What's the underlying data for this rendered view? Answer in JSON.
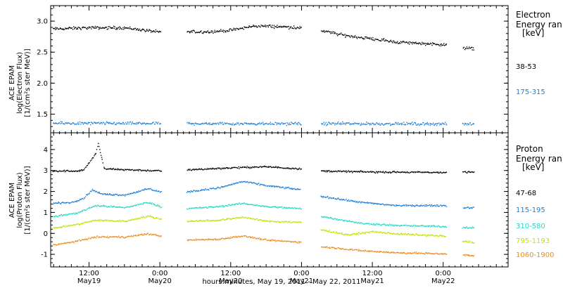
{
  "xlabel": "hours:minutes, May 19, 2011 - May 22, 2011",
  "x_ticks": [
    {
      "t": 12,
      "time": "12:00",
      "date": "May19"
    },
    {
      "t": 24,
      "time": "0:00",
      "date": "May20"
    },
    {
      "t": 36,
      "time": "12:00",
      "date": "May20"
    },
    {
      "t": 48,
      "time": "0:00",
      "date": "May21"
    },
    {
      "t": 60,
      "time": "12:00",
      "date": "May21"
    },
    {
      "t": 72,
      "time": "0:00",
      "date": "May22"
    }
  ],
  "chart_data": [
    {
      "type": "scatter",
      "ylabel": [
        "ACE EPAM",
        "log(Electron Flux)",
        "[1/(cm²s ster MeV)]"
      ],
      "ylim": [
        1.2,
        3.25
      ],
      "y_ticks": [
        "1.5",
        "2.0",
        "2.5",
        "3.0"
      ],
      "y_tick_values": [
        1.5,
        2.0,
        2.5,
        3.0
      ],
      "xlim": [
        5.5,
        83
      ],
      "legend": {
        "placement": "right",
        "title_lines": [
          "Electron",
          "Energy ran",
          "[keV]"
        ],
        "entries": [
          {
            "label": "38-53",
            "color": "#000000"
          },
          {
            "label": "175-315",
            "color": "#1e7fd6"
          }
        ]
      },
      "data_gaps": [
        [
          24.2,
          28.5
        ],
        [
          47.9,
          51.2
        ],
        [
          72.5,
          75.2
        ]
      ],
      "data_end": 77.2,
      "series": [
        {
          "name": "38-53",
          "color": "#000000",
          "profile": [
            [
              5.5,
              2.88
            ],
            [
              12,
              2.9
            ],
            [
              18,
              2.9
            ],
            [
              24,
              2.83
            ],
            [
              28.5,
              2.83
            ],
            [
              33,
              2.84
            ],
            [
              36,
              2.86
            ],
            [
              40,
              2.93
            ],
            [
              44,
              2.92
            ],
            [
              48,
              2.9
            ],
            [
              51,
              2.86
            ],
            [
              55,
              2.78
            ],
            [
              60,
              2.72
            ],
            [
              64,
              2.67
            ],
            [
              68,
              2.65
            ],
            [
              72,
              2.63
            ],
            [
              75,
              2.58
            ],
            [
              77,
              2.56
            ]
          ]
        },
        {
          "name": "175-315",
          "color": "#1e7fd6",
          "profile": [
            [
              5.5,
              1.36
            ],
            [
              77,
              1.35
            ]
          ]
        }
      ]
    },
    {
      "type": "scatter",
      "ylabel": [
        "ACE EPAM",
        "log(Proton Flux)",
        "[1/(cm²s ster MeV)]"
      ],
      "ylim": [
        -1.6,
        4.8
      ],
      "y_ticks": [
        "-1",
        "0",
        "1",
        "2",
        "3",
        "4"
      ],
      "y_tick_values": [
        -1,
        0,
        1,
        2,
        3,
        4
      ],
      "xlim": [
        5.5,
        83
      ],
      "legend": {
        "placement": "right",
        "title_lines": [
          "Proton",
          "Energy ran",
          "[keV]"
        ],
        "entries": [
          {
            "label": "47-68",
            "color": "#000000"
          },
          {
            "label": "115-195",
            "color": "#1e7fd6"
          },
          {
            "label": "310-580",
            "color": "#22d8c8"
          },
          {
            "label": "795-1193",
            "color": "#c6e000"
          },
          {
            "label": "1060-1900",
            "color": "#f08a1c"
          }
        ]
      },
      "data_gaps": [
        [
          24.2,
          28.5
        ],
        [
          47.9,
          51.2
        ],
        [
          72.5,
          75.2
        ]
      ],
      "data_end": 77.2,
      "series": [
        {
          "name": "47-68",
          "color": "#000000",
          "profile": [
            [
              5.5,
              3.0
            ],
            [
              10,
              3.0
            ],
            [
              11,
              3.05
            ],
            [
              12,
              3.4
            ],
            [
              13,
              3.8
            ],
            [
              13.5,
              4.3
            ],
            [
              14.5,
              3.1
            ],
            [
              24,
              3.0
            ],
            [
              28.5,
              3.05
            ],
            [
              36,
              3.15
            ],
            [
              42,
              3.2
            ],
            [
              48,
              3.1
            ],
            [
              51,
              3.0
            ],
            [
              60,
              2.95
            ],
            [
              72,
              2.93
            ],
            [
              75,
              2.95
            ],
            [
              77,
              2.95
            ]
          ]
        },
        {
          "name": "115-195",
          "color": "#1e7fd6",
          "profile": [
            [
              5.5,
              1.45
            ],
            [
              9,
              1.5
            ],
            [
              11,
              1.7
            ],
            [
              12.5,
              2.1
            ],
            [
              14,
              1.9
            ],
            [
              18,
              1.85
            ],
            [
              22,
              2.15
            ],
            [
              24,
              2.0
            ],
            [
              28.5,
              2.0
            ],
            [
              34,
              2.2
            ],
            [
              38,
              2.5
            ],
            [
              42,
              2.3
            ],
            [
              48,
              2.1
            ],
            [
              51,
              1.8
            ],
            [
              58,
              1.5
            ],
            [
              64,
              1.35
            ],
            [
              72,
              1.35
            ],
            [
              75,
              1.25
            ],
            [
              77,
              1.25
            ]
          ]
        },
        {
          "name": "310-580",
          "color": "#22d8c8",
          "profile": [
            [
              5.5,
              0.8
            ],
            [
              10,
              1.0
            ],
            [
              13,
              1.35
            ],
            [
              18,
              1.25
            ],
            [
              22,
              1.5
            ],
            [
              24,
              1.3
            ],
            [
              28.5,
              1.2
            ],
            [
              34,
              1.3
            ],
            [
              38,
              1.45
            ],
            [
              42,
              1.3
            ],
            [
              48,
              1.2
            ],
            [
              51,
              0.85
            ],
            [
              58,
              0.5
            ],
            [
              64,
              0.4
            ],
            [
              72,
              0.35
            ],
            [
              75,
              0.3
            ],
            [
              77,
              0.3
            ]
          ]
        },
        {
          "name": "795-1193",
          "color": "#c6e000",
          "profile": [
            [
              5.5,
              0.25
            ],
            [
              10,
              0.45
            ],
            [
              13,
              0.65
            ],
            [
              18,
              0.6
            ],
            [
              22,
              0.85
            ],
            [
              24,
              0.7
            ],
            [
              28.5,
              0.6
            ],
            [
              34,
              0.65
            ],
            [
              38,
              0.8
            ],
            [
              42,
              0.6
            ],
            [
              48,
              0.55
            ],
            [
              51,
              0.2
            ],
            [
              56,
              -0.05
            ],
            [
              60,
              0.1
            ],
            [
              64,
              0.0
            ],
            [
              72,
              -0.1
            ],
            [
              75,
              -0.35
            ],
            [
              77,
              -0.4
            ]
          ]
        },
        {
          "name": "1060-1900",
          "color": "#f08a1c",
          "profile": [
            [
              5.5,
              -0.55
            ],
            [
              10,
              -0.35
            ],
            [
              13,
              -0.15
            ],
            [
              18,
              -0.15
            ],
            [
              22,
              0.0
            ],
            [
              24,
              -0.1
            ],
            [
              28.5,
              -0.3
            ],
            [
              34,
              -0.25
            ],
            [
              38,
              -0.1
            ],
            [
              42,
              -0.3
            ],
            [
              48,
              -0.4
            ],
            [
              51,
              -0.6
            ],
            [
              58,
              -0.8
            ],
            [
              64,
              -0.9
            ],
            [
              72,
              -0.95
            ],
            [
              75,
              -1.0
            ],
            [
              77,
              -1.05
            ]
          ]
        }
      ]
    }
  ]
}
